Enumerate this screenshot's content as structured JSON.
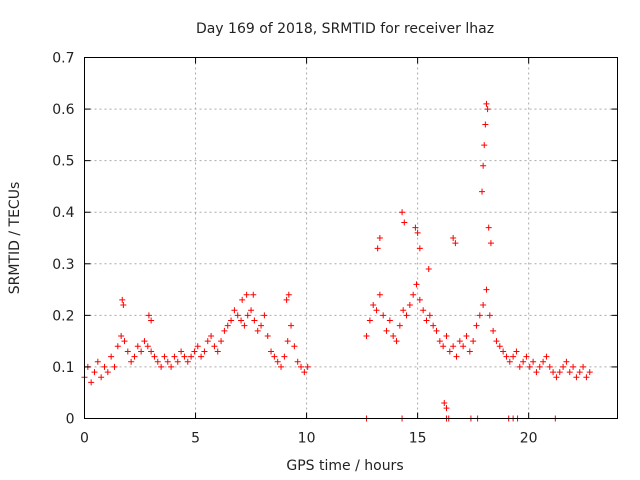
{
  "chart_data": {
    "type": "scatter",
    "title": "Day 169 of 2018, SRMTID for receiver lhaz",
    "xlabel": "GPS time / hours",
    "ylabel": "SRMTID / TECUs",
    "xlim": [
      0,
      24
    ],
    "ylim": [
      0,
      0.7
    ],
    "xticks": [
      "0",
      "5",
      "10",
      "15",
      "20"
    ],
    "yticks": [
      "0",
      "0.1",
      "0.2",
      "0.3",
      "0.4",
      "0.5",
      "0.6",
      "0.7"
    ],
    "grid": true,
    "marker": "+",
    "series": [
      {
        "name": "SRMTID",
        "color": "#ff0000",
        "x": [
          0.0,
          0.15,
          0.3,
          0.45,
          0.6,
          0.75,
          0.9,
          1.05,
          1.2,
          1.35,
          1.5,
          1.65,
          1.8,
          1.95,
          2.1,
          2.25,
          2.4,
          2.55,
          2.7,
          2.85,
          3.0,
          3.15,
          3.3,
          3.45,
          3.6,
          3.75,
          3.9,
          4.05,
          4.2,
          4.35,
          4.5,
          4.65,
          4.8,
          4.95,
          5.1,
          5.25,
          5.4,
          5.55,
          5.7,
          5.85,
          6.0,
          6.15,
          6.3,
          6.45,
          6.6,
          6.75,
          6.9,
          7.05,
          7.2,
          7.35,
          7.5,
          7.65,
          7.8,
          7.95,
          8.1,
          8.25,
          8.4,
          8.55,
          8.7,
          8.85,
          9.0,
          9.15,
          9.3,
          9.45,
          9.6,
          9.75,
          9.9,
          10.05,
          12.7,
          12.85,
          13.0,
          13.15,
          13.3,
          13.45,
          13.6,
          13.75,
          13.9,
          14.05,
          14.2,
          14.35,
          14.5,
          14.65,
          14.8,
          14.95,
          15.1,
          15.25,
          15.4,
          15.55,
          15.7,
          15.85,
          16.0,
          16.15,
          16.3,
          16.45,
          16.6,
          16.75,
          16.9,
          17.05,
          17.2,
          17.35,
          17.5,
          17.65,
          17.8,
          17.95,
          18.1,
          18.25,
          18.4,
          18.55,
          18.7,
          18.85,
          19.0,
          19.15,
          19.3,
          19.45,
          19.6,
          19.75,
          19.9,
          20.05,
          20.2,
          20.35,
          20.5,
          20.65,
          20.8,
          20.95,
          21.1,
          21.25,
          21.4,
          21.55,
          21.7,
          21.85,
          22.0,
          22.15,
          22.3,
          22.45,
          22.6,
          22.75
        ],
        "y": [
          0.08,
          0.1,
          0.07,
          0.09,
          0.11,
          0.08,
          0.1,
          0.09,
          0.12,
          0.1,
          0.14,
          0.16,
          0.15,
          0.13,
          0.11,
          0.12,
          0.14,
          0.13,
          0.15,
          0.14,
          0.13,
          0.12,
          0.11,
          0.1,
          0.12,
          0.11,
          0.1,
          0.12,
          0.11,
          0.13,
          0.12,
          0.11,
          0.12,
          0.13,
          0.14,
          0.12,
          0.13,
          0.15,
          0.16,
          0.14,
          0.13,
          0.15,
          0.17,
          0.18,
          0.19,
          0.21,
          0.2,
          0.19,
          0.18,
          0.2,
          0.21,
          0.19,
          0.17,
          0.18,
          0.2,
          0.16,
          0.13,
          0.12,
          0.11,
          0.1,
          0.12,
          0.15,
          0.18,
          0.14,
          0.11,
          0.1,
          0.09,
          0.1,
          0.16,
          0.19,
          0.22,
          0.21,
          0.24,
          0.2,
          0.17,
          0.19,
          0.16,
          0.15,
          0.18,
          0.21,
          0.2,
          0.22,
          0.24,
          0.26,
          0.23,
          0.21,
          0.19,
          0.2,
          0.18,
          0.17,
          0.15,
          0.14,
          0.16,
          0.13,
          0.14,
          0.12,
          0.15,
          0.14,
          0.16,
          0.13,
          0.15,
          0.18,
          0.2,
          0.22,
          0.25,
          0.2,
          0.17,
          0.15,
          0.14,
          0.13,
          0.12,
          0.11,
          0.12,
          0.13,
          0.1,
          0.11,
          0.12,
          0.1,
          0.11,
          0.09,
          0.1,
          0.11,
          0.12,
          0.1,
          0.09,
          0.08,
          0.09,
          0.1,
          0.11,
          0.09,
          0.1,
          0.08,
          0.09,
          0.1,
          0.08,
          0.09
        ],
        "spikes_x": [
          1.7,
          1.75,
          2.9,
          3.0,
          7.1,
          7.3,
          7.6,
          9.1,
          9.2,
          13.2,
          13.3,
          14.3,
          14.4,
          14.9,
          15.0,
          15.1,
          15.5,
          16.2,
          16.3,
          16.6,
          16.7,
          17.9,
          17.95,
          18.0,
          18.05,
          18.1,
          18.15,
          18.2,
          18.3
        ],
        "spikes_y": [
          0.23,
          0.22,
          0.2,
          0.19,
          0.23,
          0.24,
          0.24,
          0.23,
          0.24,
          0.33,
          0.35,
          0.4,
          0.38,
          0.37,
          0.36,
          0.33,
          0.29,
          0.03,
          0.02,
          0.35,
          0.34,
          0.44,
          0.49,
          0.53,
          0.57,
          0.61,
          0.6,
          0.37,
          0.34
        ],
        "floor_x": [
          12.7,
          14.3,
          16.3,
          16.4,
          17.4,
          17.7,
          19.1,
          19.3,
          19.5,
          21.2
        ],
        "floor_y": [
          0,
          0,
          0,
          0,
          0,
          0,
          0,
          0,
          0,
          0
        ]
      }
    ]
  }
}
